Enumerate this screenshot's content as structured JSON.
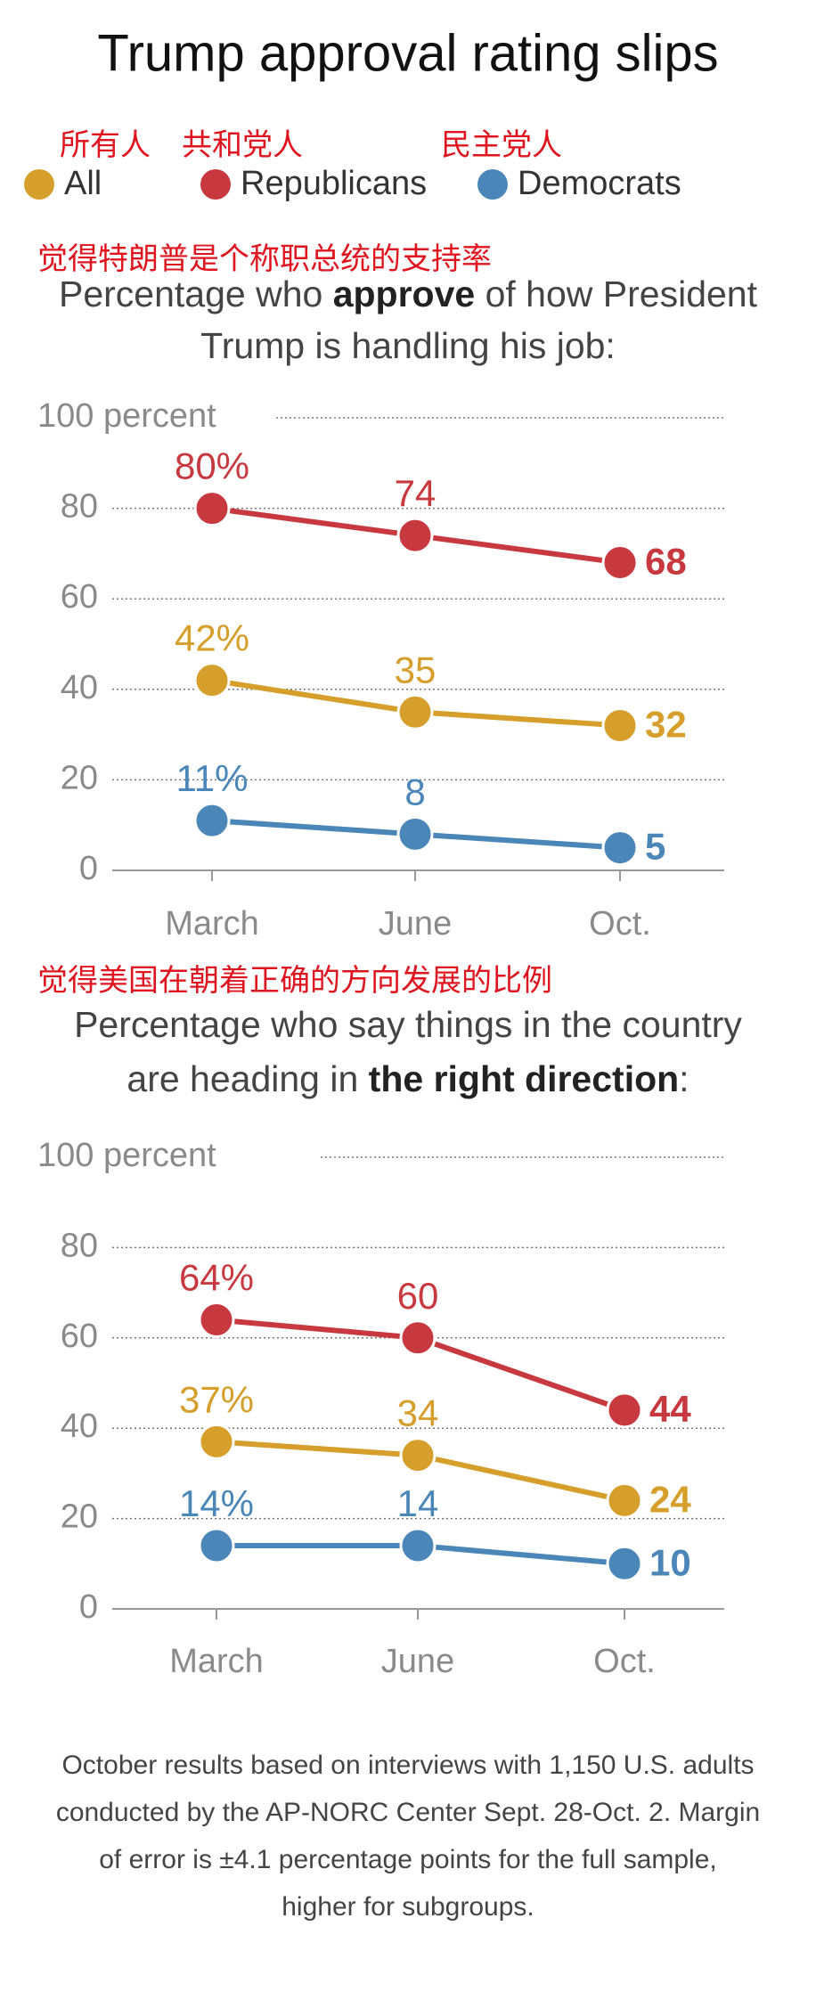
{
  "title": "Trump approval rating slips",
  "legend_translations": [
    "所有人",
    "共和党人",
    "民主党人"
  ],
  "chart_data": [
    {
      "type": "line",
      "annotation": "觉得特朗普是个称职总统的支持率",
      "subtitle_lines": [
        [
          {
            "text": "Percentage who "
          },
          {
            "text": "approve",
            "bold": true
          },
          {
            "text": " of how President"
          }
        ],
        [
          {
            "text": "Trump is handling his job:"
          }
        ]
      ],
      "categories": [
        "March",
        "June",
        "Oct."
      ],
      "ylim": [
        0,
        100
      ],
      "yticks": [
        0,
        20,
        40,
        60,
        80,
        {
          "value": 100,
          "label": "100 percent"
        }
      ],
      "grid": true,
      "series": [
        {
          "name": "All",
          "color": "#d69e2a",
          "values": [
            42,
            35,
            32
          ],
          "value_labels": [
            "42%",
            "35",
            "32"
          ]
        },
        {
          "name": "Republicans",
          "color": "#c8393f",
          "values": [
            80,
            74,
            68
          ],
          "value_labels": [
            "80%",
            "74",
            "68"
          ]
        },
        {
          "name": "Democrats",
          "color": "#4a86b8",
          "values": [
            11,
            8,
            5
          ],
          "value_labels": [
            "11%",
            "8",
            "5"
          ]
        }
      ]
    },
    {
      "type": "line",
      "annotation": "觉得美国在朝着正确的方向发展的比例",
      "subtitle_lines": [
        [
          {
            "text": "Percentage who say things in the country"
          }
        ],
        [
          {
            "text": "are heading in "
          },
          {
            "text": "the right direction",
            "bold": true
          },
          {
            "text": ":"
          }
        ]
      ],
      "categories": [
        "March",
        "June",
        "Oct."
      ],
      "ylim": [
        0,
        100
      ],
      "yticks": [
        0,
        20,
        40,
        60,
        80,
        {
          "value": 100,
          "label": "100 percent"
        }
      ],
      "grid": true,
      "series": [
        {
          "name": "All",
          "color": "#d69e2a",
          "values": [
            37,
            34,
            24
          ],
          "value_labels": [
            "37%",
            "34",
            "24"
          ]
        },
        {
          "name": "Republicans",
          "color": "#c8393f",
          "values": [
            64,
            60,
            44
          ],
          "value_labels": [
            "64%",
            "60",
            "44"
          ]
        },
        {
          "name": "Democrats",
          "color": "#4a86b8",
          "values": [
            14,
            14,
            10
          ],
          "value_labels": [
            "14%",
            "14",
            "10"
          ]
        }
      ]
    }
  ],
  "note_lines": [
    "October results based on interviews with 1,150 U.S. adults",
    "conducted by the AP-NORC Center Sept. 28-Oct. 2. Margin",
    "of error is ±4.1 percentage points for the full sample,",
    "higher for subgroups."
  ]
}
